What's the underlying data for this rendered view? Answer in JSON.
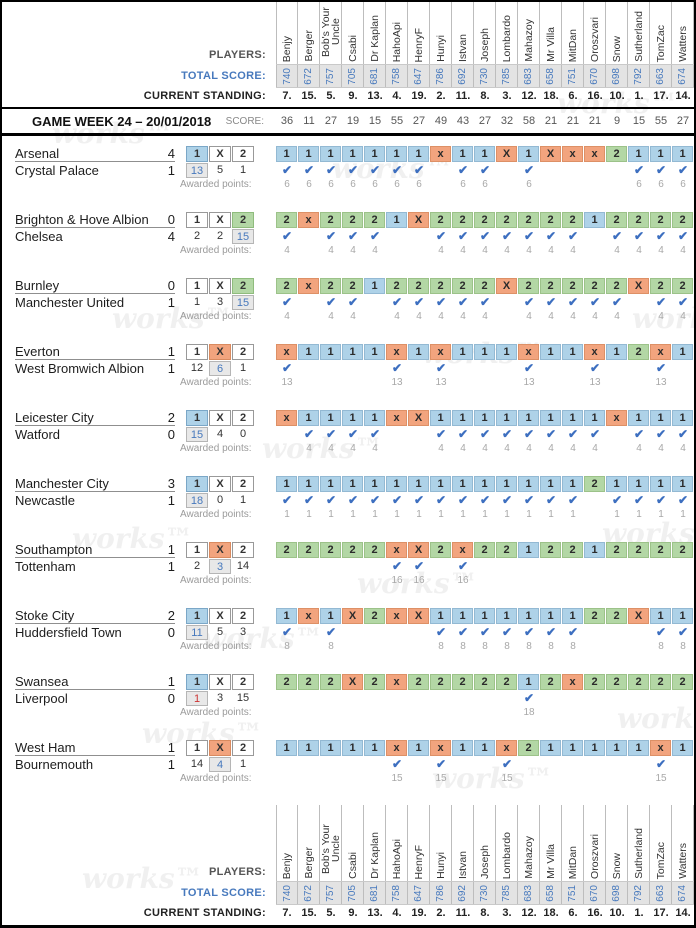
{
  "watermark": {
    "text": "works™"
  },
  "labels": {
    "players": "PLAYERS:",
    "total_score": "TOTAL SCORE:",
    "current_standing": "CURRENT STANDING:",
    "score": "SCORE:",
    "awarded_points": "Awarded points:"
  },
  "icons": {
    "check": "✔"
  },
  "colors": {
    "pick_home": "#aed2e8",
    "pick_draw": "#f2a47e",
    "pick_away": "#b3d7a5",
    "accent_blue": "#4779bd",
    "accent_red": "#cc3333"
  },
  "header": {
    "title": "GAME WEEK 24 – 20/01/2018",
    "week_scores": [
      36,
      11,
      27,
      19,
      15,
      55,
      27,
      49,
      43,
      27,
      32,
      58,
      21,
      21,
      21,
      9,
      15,
      55,
      27
    ]
  },
  "outcome_options": [
    "1",
    "X",
    "2"
  ],
  "players": [
    "Benjy",
    "Berger",
    "Bob's Your Uncle",
    "Csabi",
    "Dr Kaplan",
    "HahoApi",
    "HenryF",
    "Hunyi",
    "Istvan",
    "Joseph",
    "Lombardo",
    "Mahazoy",
    "Mr Villa",
    "MitDan",
    "Oroszvari",
    "Snow",
    "Sutherland",
    "TomZac",
    "Watters"
  ],
  "total_scores": [
    740,
    672,
    757,
    705,
    681,
    758,
    647,
    786,
    692,
    730,
    785,
    683,
    658,
    751,
    670,
    698,
    792,
    663,
    674
  ],
  "standings": [
    "7.",
    "15.",
    "5.",
    "9.",
    "13.",
    "4.",
    "19.",
    "2.",
    "11.",
    "8.",
    "3.",
    "12.",
    "18.",
    "6.",
    "16.",
    "10.",
    "1.",
    "17.",
    "14."
  ],
  "matches": [
    {
      "home": "Arsenal",
      "home_score": "4",
      "away": "Crystal Palace",
      "away_score": "1",
      "result": "1",
      "votes": [
        "13",
        "5",
        "1"
      ],
      "vote_color": "blue",
      "points": 6,
      "picks": [
        "1",
        "1",
        "1",
        "1",
        "1",
        "1",
        "1",
        "x",
        "1",
        "1",
        "X",
        "1",
        "X",
        "x",
        "x",
        "2",
        "1",
        "1",
        "1"
      ]
    },
    {
      "home": "Brighton & Hove Albion",
      "home_score": "0",
      "away": "Chelsea",
      "away_score": "4",
      "result": "2",
      "votes": [
        "2",
        "2",
        "15"
      ],
      "vote_color": "blue",
      "points": 4,
      "picks": [
        "2",
        "x",
        "2",
        "2",
        "2",
        "1",
        "X",
        "2",
        "2",
        "2",
        "2",
        "2",
        "2",
        "2",
        "1",
        "2",
        "2",
        "2",
        "2"
      ]
    },
    {
      "home": "Burnley",
      "home_score": "0",
      "away": "Manchester United",
      "away_score": "1",
      "result": "2",
      "votes": [
        "1",
        "3",
        "15"
      ],
      "vote_color": "blue",
      "points": 4,
      "picks": [
        "2",
        "x",
        "2",
        "2",
        "1",
        "2",
        "2",
        "2",
        "2",
        "2",
        "X",
        "2",
        "2",
        "2",
        "2",
        "2",
        "X",
        "2",
        "2"
      ]
    },
    {
      "home": "Everton",
      "home_score": "1",
      "away": "West Bromwich Albion",
      "away_score": "1",
      "result": "X",
      "votes": [
        "12",
        "6",
        "1"
      ],
      "vote_color": "blue",
      "points": 13,
      "picks": [
        "x",
        "1",
        "1",
        "1",
        "1",
        "x",
        "1",
        "x",
        "1",
        "1",
        "1",
        "x",
        "1",
        "1",
        "x",
        "1",
        "2",
        "x",
        "1"
      ]
    },
    {
      "home": "Leicester City",
      "home_score": "2",
      "away": "Watford",
      "away_score": "0",
      "result": "1",
      "votes": [
        "15",
        "4",
        "0"
      ],
      "vote_color": "blue",
      "points": 4,
      "picks": [
        "x",
        "1",
        "1",
        "1",
        "1",
        "x",
        "X",
        "1",
        "1",
        "1",
        "1",
        "1",
        "1",
        "1",
        "1",
        "x",
        "1",
        "1",
        "1"
      ]
    },
    {
      "home": "Manchester City",
      "home_score": "3",
      "away": "Newcastle",
      "away_score": "1",
      "result": "1",
      "votes": [
        "18",
        "0",
        "1"
      ],
      "vote_color": "blue",
      "points": 1,
      "picks": [
        "1",
        "1",
        "1",
        "1",
        "1",
        "1",
        "1",
        "1",
        "1",
        "1",
        "1",
        "1",
        "1",
        "1",
        "2",
        "1",
        "1",
        "1",
        "1"
      ]
    },
    {
      "home": "Southampton",
      "home_score": "1",
      "away": "Tottenham",
      "away_score": "1",
      "result": "X",
      "votes": [
        "2",
        "3",
        "14"
      ],
      "vote_color": "blue",
      "points": 16,
      "picks": [
        "2",
        "2",
        "2",
        "2",
        "2",
        "x",
        "X",
        "2",
        "x",
        "2",
        "2",
        "1",
        "2",
        "2",
        "1",
        "2",
        "2",
        "2",
        "2"
      ]
    },
    {
      "home": "Stoke City",
      "home_score": "2",
      "away": "Huddersfield Town",
      "away_score": "0",
      "result": "1",
      "votes": [
        "11",
        "5",
        "3"
      ],
      "vote_color": "blue",
      "points": 8,
      "picks": [
        "1",
        "x",
        "1",
        "X",
        "2",
        "x",
        "X",
        "1",
        "1",
        "1",
        "1",
        "1",
        "1",
        "1",
        "2",
        "2",
        "X",
        "1",
        "1"
      ]
    },
    {
      "home": "Swansea",
      "home_score": "1",
      "away": "Liverpool",
      "away_score": "0",
      "result": "1",
      "votes": [
        "1",
        "3",
        "15"
      ],
      "vote_color": "red",
      "points": 18,
      "picks": [
        "2",
        "2",
        "2",
        "X",
        "2",
        "x",
        "2",
        "2",
        "2",
        "2",
        "2",
        "1",
        "2",
        "x",
        "2",
        "2",
        "2",
        "2",
        "2"
      ]
    },
    {
      "home": "West Ham",
      "home_score": "1",
      "away": "Bournemouth",
      "away_score": "1",
      "result": "X",
      "votes": [
        "14",
        "4",
        "1"
      ],
      "vote_color": "blue",
      "points": 15,
      "picks": [
        "1",
        "1",
        "1",
        "1",
        "1",
        "x",
        "1",
        "x",
        "1",
        "1",
        "x",
        "2",
        "1",
        "1",
        "1",
        "1",
        "1",
        "x",
        "1"
      ]
    }
  ]
}
